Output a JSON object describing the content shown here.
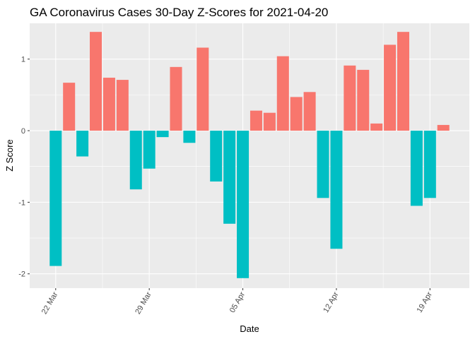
{
  "chart_data": {
    "type": "bar",
    "title": "GA Coronavirus Cases 30-Day Z-Scores for 2021-04-20",
    "xlabel": "Date",
    "ylabel": "Z Score",
    "x_start": "2021-03-22",
    "x_end": "2021-04-20",
    "ylim": [
      -2.2,
      1.5
    ],
    "y_ticks": [
      -2,
      -1,
      0,
      1
    ],
    "x_ticks": [
      {
        "label": "22 Mar",
        "date": "2021-03-22"
      },
      {
        "label": "29 Mar",
        "date": "2021-03-29"
      },
      {
        "label": "05 Apr",
        "date": "2021-04-05"
      },
      {
        "label": "12 Apr",
        "date": "2021-04-12"
      },
      {
        "label": "19 Apr",
        "date": "2021-04-19"
      }
    ],
    "grid": true,
    "legend": "none",
    "colors": {
      "positive": "#F8766D",
      "negative": "#00BFC4"
    },
    "bars": [
      {
        "date": "2021-03-22",
        "value": -1.89
      },
      {
        "date": "2021-03-23",
        "value": 0.67
      },
      {
        "date": "2021-03-24",
        "value": -0.36
      },
      {
        "date": "2021-03-25",
        "value": 1.38
      },
      {
        "date": "2021-03-26",
        "value": 0.74
      },
      {
        "date": "2021-03-27",
        "value": 0.71
      },
      {
        "date": "2021-03-28",
        "value": -0.82
      },
      {
        "date": "2021-03-29",
        "value": -0.53
      },
      {
        "date": "2021-03-30",
        "value": -0.09
      },
      {
        "date": "2021-03-31",
        "value": 0.89
      },
      {
        "date": "2021-04-01",
        "value": -0.17
      },
      {
        "date": "2021-04-02",
        "value": 1.16
      },
      {
        "date": "2021-04-03",
        "value": -0.71
      },
      {
        "date": "2021-04-04",
        "value": -1.3
      },
      {
        "date": "2021-04-05",
        "value": -2.06
      },
      {
        "date": "2021-04-06",
        "value": 0.28
      },
      {
        "date": "2021-04-07",
        "value": 0.25
      },
      {
        "date": "2021-04-08",
        "value": 1.04
      },
      {
        "date": "2021-04-09",
        "value": 0.47
      },
      {
        "date": "2021-04-10",
        "value": 0.54
      },
      {
        "date": "2021-04-11",
        "value": -0.94
      },
      {
        "date": "2021-04-12",
        "value": -1.65
      },
      {
        "date": "2021-04-13",
        "value": 0.91
      },
      {
        "date": "2021-04-14",
        "value": 0.85
      },
      {
        "date": "2021-04-15",
        "value": 0.1
      },
      {
        "date": "2021-04-16",
        "value": 1.2
      },
      {
        "date": "2021-04-17",
        "value": 1.38
      },
      {
        "date": "2021-04-18",
        "value": -1.05
      },
      {
        "date": "2021-04-19",
        "value": -0.94
      },
      {
        "date": "2021-04-20",
        "value": 0.08
      }
    ]
  }
}
